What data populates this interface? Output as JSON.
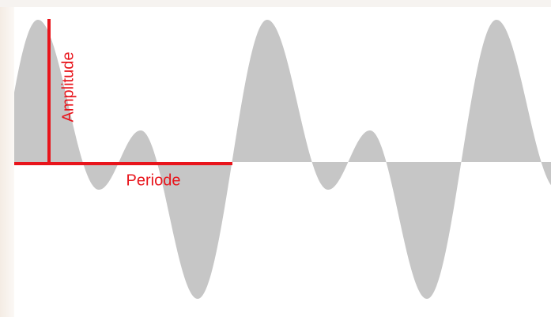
{
  "labels": {
    "amplitude": "Amplitude",
    "period": "Periode"
  }
}
